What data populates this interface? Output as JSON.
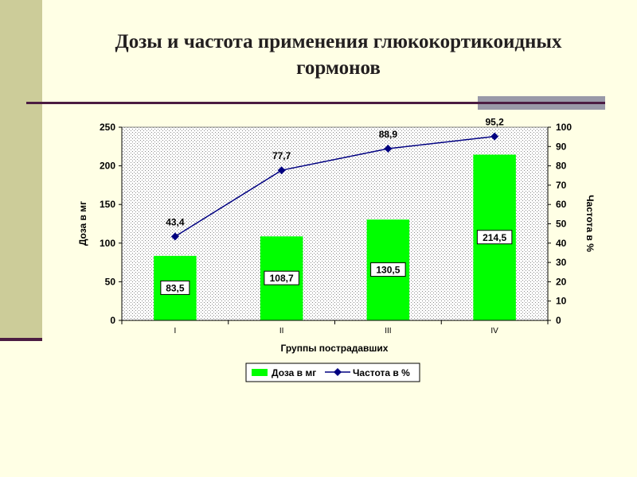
{
  "slide": {
    "title_line1": "Дозы и частота применения глюкокортикоидных",
    "title_line2": "гормонов"
  },
  "chart_data": {
    "type": "bar",
    "categories": [
      "I",
      "II",
      "III",
      "IV"
    ],
    "series": [
      {
        "name": "Доза в мг",
        "type": "bar",
        "axis": "left",
        "values": [
          83.5,
          108.7,
          130.5,
          214.5
        ],
        "labels": [
          "83,5",
          "108,7",
          "130,5",
          "214,5"
        ],
        "color": "#00FF00"
      },
      {
        "name": "Частота в %",
        "type": "line",
        "axis": "right",
        "marker": "diamond",
        "values": [
          43.4,
          77.7,
          88.9,
          95.2
        ],
        "labels": [
          "43,4",
          "77,7",
          "88,9",
          "95,2"
        ],
        "color": "#000080"
      }
    ],
    "xlabel": "Группы пострадавших",
    "ylabel": "Доза в мг",
    "y2label": "Частота в %",
    "ylim": [
      0,
      250
    ],
    "yticks": [
      0,
      50,
      100,
      150,
      200,
      250
    ],
    "y2lim": [
      0,
      100
    ],
    "y2ticks": [
      0,
      10,
      20,
      30,
      40,
      50,
      60,
      70,
      80,
      90,
      100
    ],
    "grid": false,
    "plot_background": "dotted",
    "legend": "bottom"
  }
}
